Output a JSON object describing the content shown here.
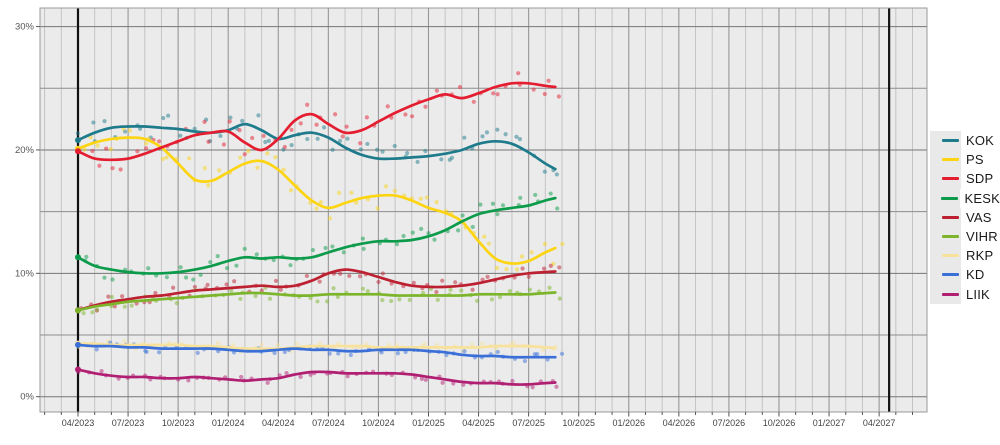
{
  "chart_data": {
    "type": "line",
    "description": "Finnish party support trend lines with individual poll result dots",
    "x_axis": {
      "tick_labels": [
        "04/2023",
        "07/2023",
        "10/2023",
        "01/2024",
        "04/2024",
        "07/2024",
        "10/2024",
        "01/2025",
        "04/2025",
        "07/2025",
        "10/2025",
        "01/2026",
        "04/2026",
        "07/2026",
        "10/2026",
        "01/2027",
        "04/2027"
      ],
      "tick_step_months": 3,
      "minor_grid_step_months": 1,
      "visible_month_range": [
        -2,
        50
      ]
    },
    "y_axis": {
      "tick_labels": [
        "30%",
        "20%",
        "10%",
        "0%"
      ],
      "tick_values": [
        30,
        20,
        10,
        0
      ],
      "minor_grid_step": 5,
      "range": [
        0,
        32.8
      ]
    },
    "election_marker_months": [
      0,
      48.6
    ],
    "data_start_month_label": "04/2023",
    "data_end_month_label": "08/2025",
    "series": [
      {
        "name": "KOK",
        "color": "#1e7b8c",
        "values": [
          20.8,
          21.4,
          21.8,
          21.9,
          21.9,
          21.8,
          21.7,
          21.5,
          21.4,
          21.6,
          22.1,
          21.6,
          20.9,
          21.2,
          21.4,
          21.0,
          20.2,
          19.6,
          19.3,
          19.3,
          19.4,
          19.5,
          19.7,
          20.0,
          20.5,
          20.7,
          20.5,
          19.8,
          18.9
        ]
      },
      {
        "name": "PS",
        "color": "#fcd411",
        "values": [
          20.1,
          20.6,
          20.9,
          21.0,
          20.9,
          20.2,
          18.9,
          17.6,
          17.5,
          18.2,
          18.9,
          19.1,
          18.4,
          17.1,
          15.9,
          15.3,
          15.7,
          16.1,
          16.3,
          16.3,
          15.9,
          15.3,
          14.9,
          14.2,
          12.6,
          11.2,
          10.8,
          11.0,
          11.7
        ]
      },
      {
        "name": "SDP",
        "color": "#e41e30",
        "values": [
          19.9,
          19.3,
          19.2,
          19.3,
          19.7,
          20.2,
          20.7,
          21.2,
          21.4,
          21.5,
          20.6,
          20.0,
          20.9,
          22.4,
          22.9,
          22.1,
          21.4,
          21.6,
          22.3,
          23.0,
          23.6,
          24.1,
          24.5,
          24.2,
          24.6,
          25.1,
          25.4,
          25.4,
          25.2
        ]
      },
      {
        "name": "KESK",
        "color": "#0c9b4a",
        "values": [
          11.3,
          10.6,
          10.3,
          10.1,
          10.0,
          10.0,
          10.1,
          10.3,
          10.6,
          11.0,
          11.3,
          11.2,
          11.3,
          11.2,
          11.3,
          11.7,
          12.1,
          12.4,
          12.6,
          12.6,
          12.7,
          13.0,
          13.5,
          14.2,
          14.8,
          15.1,
          15.3,
          15.5,
          15.9
        ]
      },
      {
        "name": "VAS",
        "color": "#bd2031",
        "values": [
          7.0,
          7.4,
          7.7,
          7.9,
          8.1,
          8.2,
          8.4,
          8.6,
          8.7,
          8.8,
          8.9,
          9.0,
          8.9,
          9.0,
          9.4,
          10.0,
          10.3,
          10.1,
          9.7,
          9.3,
          9.0,
          8.9,
          8.9,
          9.0,
          9.2,
          9.5,
          9.8,
          10.0,
          10.1
        ]
      },
      {
        "name": "VIHR",
        "color": "#7cb52b",
        "values": [
          7.0,
          7.3,
          7.5,
          7.7,
          7.8,
          7.9,
          8.0,
          8.1,
          8.2,
          8.3,
          8.4,
          8.4,
          8.3,
          8.2,
          8.2,
          8.3,
          8.3,
          8.3,
          8.3,
          8.2,
          8.2,
          8.2,
          8.2,
          8.2,
          8.3,
          8.3,
          8.3,
          8.3,
          8.4
        ]
      },
      {
        "name": "RKP",
        "color": "#f8e29b",
        "values": [
          4.3,
          4.3,
          4.2,
          4.2,
          4.2,
          4.2,
          4.2,
          4.1,
          4.1,
          4.0,
          3.9,
          3.9,
          3.9,
          4.0,
          4.1,
          4.1,
          4.1,
          4.1,
          4.0,
          4.0,
          4.0,
          4.0,
          4.0,
          4.0,
          4.0,
          4.1,
          4.1,
          4.1,
          4.0
        ]
      },
      {
        "name": "KD",
        "color": "#3a6fd8",
        "values": [
          4.2,
          4.1,
          4.1,
          4.0,
          4.0,
          3.9,
          3.9,
          3.9,
          3.9,
          3.8,
          3.7,
          3.7,
          3.8,
          3.9,
          3.8,
          3.8,
          3.7,
          3.7,
          3.8,
          3.8,
          3.8,
          3.7,
          3.6,
          3.4,
          3.3,
          3.3,
          3.2,
          3.2,
          3.2
        ]
      },
      {
        "name": "LIIK",
        "color": "#b11f73",
        "values": [
          2.2,
          1.9,
          1.7,
          1.6,
          1.6,
          1.5,
          1.5,
          1.6,
          1.5,
          1.4,
          1.3,
          1.4,
          1.5,
          1.8,
          2.0,
          2.0,
          1.9,
          1.9,
          1.9,
          1.9,
          1.8,
          1.6,
          1.4,
          1.2,
          1.1,
          1.1,
          1.0,
          1.0,
          1.1
        ]
      }
    ],
    "legend": {
      "position": "right-outside",
      "entries": [
        "KOK",
        "PS",
        "SDP",
        "KESK",
        "VAS",
        "VIHR",
        "RKP",
        "KD",
        "LIIK"
      ]
    },
    "scatter": {
      "present": true,
      "style": "faded individual poll dots scattered around each trend line"
    },
    "grid": {
      "background": "#ebebeb",
      "minor_vline_color": "#c4c4c4",
      "quarter_vline_color": "#979797",
      "hline_color": "#8d8d8d",
      "major_hline_color": "#767676",
      "frame_color": "#999999",
      "election_line_color": "#111111"
    }
  }
}
